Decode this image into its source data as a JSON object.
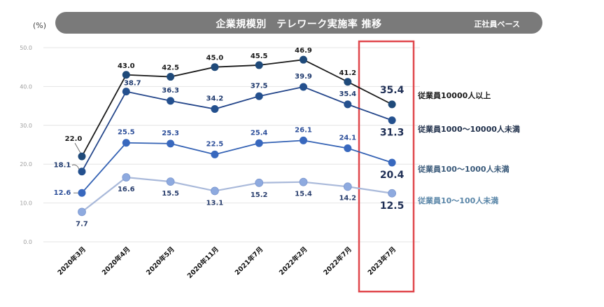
{
  "header": {
    "title": "企業規模別　テレワーク実施率 推移",
    "subtitle": "正社員ベース",
    "unit": "(%)"
  },
  "chart_data": {
    "type": "line",
    "title": "企業規模別　テレワーク実施率 推移",
    "subtitle": "正社員ベース",
    "xlabel": "",
    "ylabel": "(%)",
    "ylim": [
      0,
      50
    ],
    "yticks": [
      "0.0",
      "10.0",
      "20.0",
      "30.0",
      "40.0",
      "50.0"
    ],
    "grid": true,
    "legend_position": "right",
    "categories": [
      "2020年3月",
      "2020年4月",
      "2020年5月",
      "2020年11月",
      "2021年7月",
      "2022年2月",
      "2022年7月",
      "2023年7月"
    ],
    "highlight_category": "2023年7月",
    "highlight_color": "#e0474c",
    "series": [
      {
        "name": "従業員10000人以上",
        "values": [
          22.0,
          43.0,
          42.5,
          45.0,
          45.5,
          46.9,
          41.2,
          35.4
        ],
        "line_color": "#1a1a1a",
        "marker_color": "#1f4a7a",
        "label_color": "#1a1a1a",
        "legend_color": "#1a1a1a"
      },
      {
        "name": "従業員1000〜10000人未満",
        "values": [
          18.1,
          38.7,
          36.3,
          34.2,
          37.5,
          39.9,
          35.4,
          31.3
        ],
        "line_color": "#24468a",
        "marker_color": "#24508e",
        "label_color": "#1f3a6e",
        "legend_color": "#1f2f4a"
      },
      {
        "name": "従業員100〜1000人未満",
        "values": [
          12.6,
          25.5,
          25.3,
          22.5,
          25.4,
          26.1,
          24.1,
          20.4
        ],
        "line_color": "#3462b4",
        "marker_color": "#3868be",
        "label_color": "#2d4f9a",
        "legend_color": "#3a5a7a"
      },
      {
        "name": "従業員10〜100人未満",
        "values": [
          7.7,
          16.6,
          15.5,
          13.1,
          15.2,
          15.4,
          14.2,
          12.5
        ],
        "line_color": "#a9b9da",
        "marker_color": "#8eaadf",
        "label_color": "#2a3f6e",
        "legend_color": "#5a86a8"
      }
    ]
  }
}
